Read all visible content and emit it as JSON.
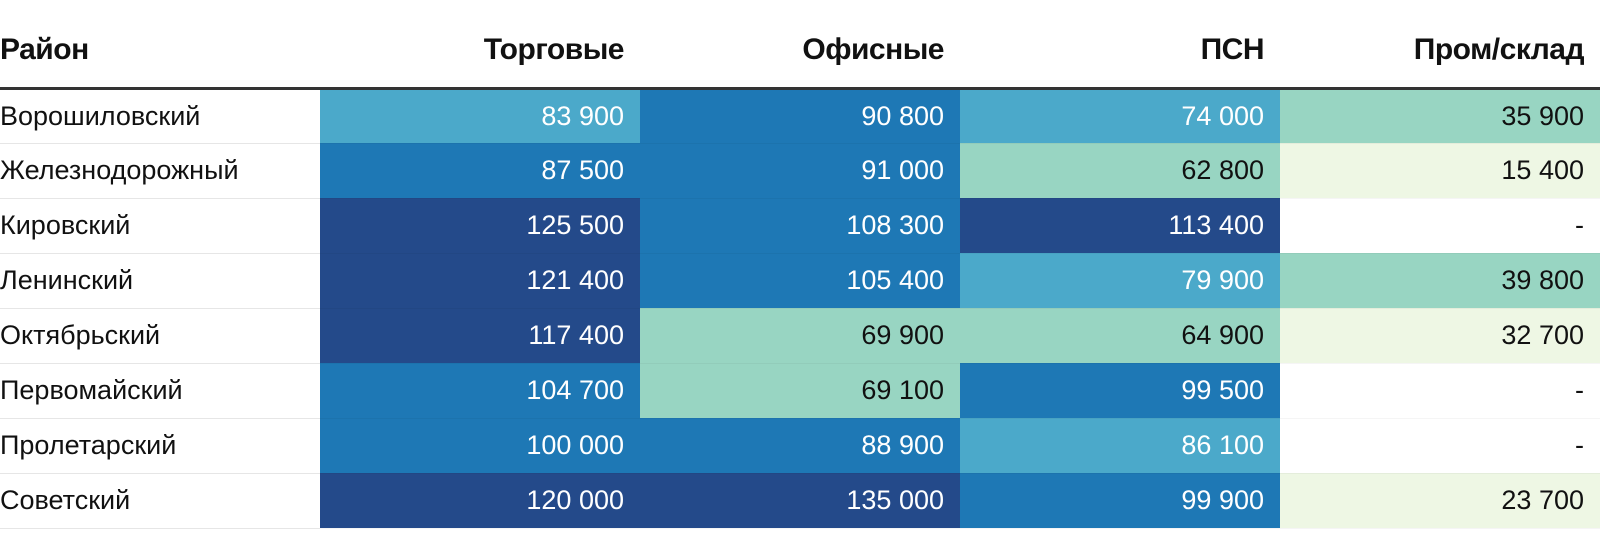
{
  "chart_data": {
    "type": "table",
    "columns": [
      "Район",
      "Торговые",
      "Офисные",
      "ПСН",
      "Пром/склад"
    ],
    "rows": [
      {
        "district": "Ворошиловский",
        "values": [
          "83 900",
          "90 800",
          "74 000",
          "35 900"
        ]
      },
      {
        "district": "Железнодорожный",
        "values": [
          "87 500",
          "91 000",
          "62 800",
          "15 400"
        ]
      },
      {
        "district": "Кировский",
        "values": [
          "125 500",
          "108 300",
          "113 400",
          "-"
        ]
      },
      {
        "district": "Ленинский",
        "values": [
          "121 400",
          "105 400",
          "79 900",
          "39 800"
        ]
      },
      {
        "district": "Октябрьский",
        "values": [
          "117 400",
          "69 900",
          "64 900",
          "32 700"
        ]
      },
      {
        "district": "Первомайский",
        "values": [
          "104 700",
          "69 100",
          "99 500",
          "-"
        ]
      },
      {
        "district": "Пролетарский",
        "values": [
          "100 000",
          "88 900",
          "86 100",
          "-"
        ]
      },
      {
        "district": "Советский",
        "values": [
          "120 000",
          "135 000",
          "99 900",
          "23 700"
        ]
      }
    ],
    "color_scale": [
      {
        "min": 0,
        "max": 0,
        "color": "#ffffff",
        "text": "#111111"
      },
      {
        "min": 1,
        "max": 35000,
        "color": "#eef7e4",
        "text": "#111111"
      },
      {
        "min": 35000,
        "max": 70000,
        "color": "#98d5c2",
        "text": "#111111"
      },
      {
        "min": 70000,
        "max": 87000,
        "color": "#4ba9ca",
        "text": "#ffffff"
      },
      {
        "min": 87000,
        "max": 110000,
        "color": "#1e78b5",
        "text": "#ffffff"
      },
      {
        "min": 110000,
        "max": 1000000,
        "color": "#244a8a",
        "text": "#ffffff"
      }
    ]
  }
}
